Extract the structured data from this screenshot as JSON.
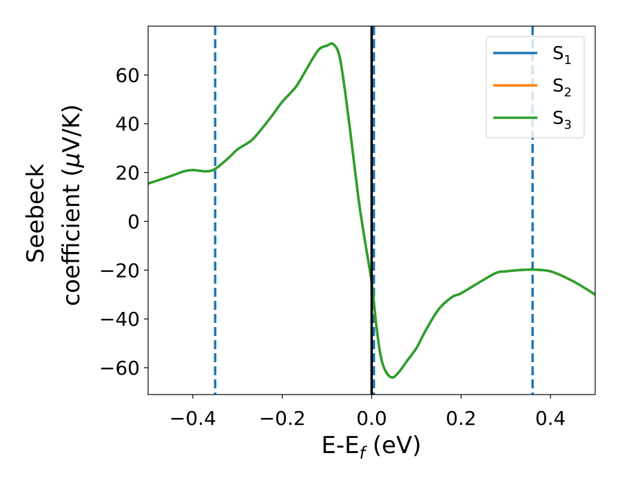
{
  "chart_data": {
    "type": "line",
    "title": "",
    "xlabel": {
      "main": "E-E",
      "sub": "f",
      "unit": " (eV)"
    },
    "ylabel": {
      "line1": "Seebeck",
      "line2": "coefficient  (",
      "mu": "μ",
      "unit": "V/K)"
    },
    "xlim": [
      -0.5,
      0.5
    ],
    "ylim": [
      -71,
      80
    ],
    "xticks": [
      -0.4,
      -0.2,
      0.0,
      0.2,
      0.4
    ],
    "xtick_labels": [
      "−0.4",
      "−0.2",
      "0.0",
      "0.2",
      "0.4"
    ],
    "yticks": [
      -60,
      -40,
      -20,
      0,
      20,
      40,
      60
    ],
    "ytick_labels": [
      "−60",
      "−40",
      "−20",
      "0",
      "20",
      "40",
      "60"
    ],
    "grid": false,
    "legend_position": "top-right",
    "series": [
      {
        "name": "S",
        "name_sub": "1",
        "color": "#1f77b4",
        "x": [
          -0.5,
          -0.45,
          -0.42,
          -0.4,
          -0.37,
          -0.35,
          -0.32,
          -0.3,
          -0.27,
          -0.25,
          -0.22,
          -0.2,
          -0.17,
          -0.15,
          -0.12,
          -0.1,
          -0.085,
          -0.07,
          -0.05,
          -0.03,
          -0.015,
          0.0,
          0.01,
          0.02,
          0.03,
          0.045,
          0.06,
          0.08,
          0.1,
          0.12,
          0.15,
          0.18,
          0.2,
          0.25,
          0.28,
          0.3,
          0.33,
          0.36,
          0.4,
          0.45,
          0.5
        ],
        "y": [
          15.5,
          18.5,
          20.5,
          21,
          20.5,
          21.5,
          26,
          29.5,
          33,
          37,
          44,
          49,
          55,
          61,
          70,
          72,
          72.5,
          66,
          40,
          10,
          -8,
          -25,
          -42,
          -55,
          -61,
          -64,
          -62,
          -57,
          -52,
          -45,
          -36,
          -31,
          -29.5,
          -24,
          -21,
          -20.5,
          -20,
          -19.8,
          -20.5,
          -24.5,
          -30
        ]
      },
      {
        "name": "S",
        "name_sub": "2",
        "color": "#ff7f0e",
        "x": [
          -0.5,
          -0.45,
          -0.42,
          -0.4,
          -0.37,
          -0.35,
          -0.32,
          -0.3,
          -0.27,
          -0.25,
          -0.22,
          -0.2,
          -0.17,
          -0.15,
          -0.12,
          -0.1,
          -0.085,
          -0.07,
          -0.05,
          -0.03,
          -0.015,
          0.0,
          0.01,
          0.02,
          0.03,
          0.045,
          0.06,
          0.08,
          0.1,
          0.12,
          0.15,
          0.18,
          0.2,
          0.25,
          0.28,
          0.3,
          0.33,
          0.36,
          0.4,
          0.45,
          0.5
        ],
        "y": [
          15.5,
          18.5,
          20.5,
          21,
          20.5,
          21.5,
          26,
          29.5,
          33,
          37,
          44,
          49,
          55,
          61,
          70,
          72,
          72.5,
          66,
          40,
          10,
          -8,
          -25,
          -42,
          -55,
          -61,
          -64,
          -62,
          -57,
          -52,
          -45,
          -36,
          -31,
          -29.5,
          -24,
          -21,
          -20.5,
          -20,
          -19.8,
          -20.5,
          -24.5,
          -30
        ]
      },
      {
        "name": "S",
        "name_sub": "3",
        "color": "#2ca02c",
        "x": [
          -0.5,
          -0.45,
          -0.42,
          -0.4,
          -0.37,
          -0.35,
          -0.32,
          -0.3,
          -0.27,
          -0.25,
          -0.22,
          -0.2,
          -0.17,
          -0.15,
          -0.12,
          -0.1,
          -0.085,
          -0.07,
          -0.05,
          -0.03,
          -0.015,
          0.0,
          0.01,
          0.02,
          0.03,
          0.045,
          0.06,
          0.08,
          0.1,
          0.12,
          0.15,
          0.18,
          0.2,
          0.25,
          0.28,
          0.3,
          0.33,
          0.36,
          0.4,
          0.45,
          0.5
        ],
        "y": [
          15.5,
          18.5,
          20.5,
          21,
          20.5,
          21.5,
          26,
          29.5,
          33,
          37,
          44,
          49,
          55,
          61,
          70,
          72,
          72.5,
          66,
          40,
          10,
          -8,
          -25,
          -42,
          -55,
          -61,
          -64,
          -62,
          -57,
          -52,
          -45,
          -36,
          -31,
          -29.5,
          -24,
          -21,
          -20.5,
          -20,
          -19.8,
          -20.5,
          -24.5,
          -30
        ]
      }
    ],
    "vlines": [
      {
        "x": -0.35,
        "style": "dashed",
        "color": "#1f77b4"
      },
      {
        "x": 0.005,
        "style": "dashed",
        "color": "#1f77b4"
      },
      {
        "x": 0.36,
        "style": "dashed",
        "color": "#1f77b4"
      },
      {
        "x": 0.0,
        "style": "solid",
        "color": "#000000"
      }
    ]
  }
}
